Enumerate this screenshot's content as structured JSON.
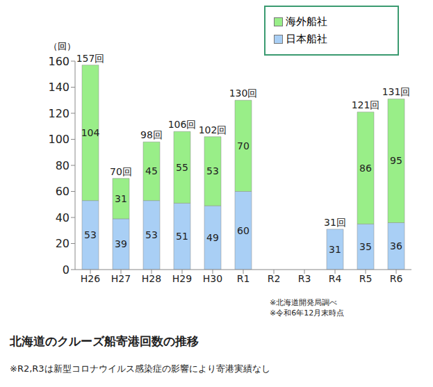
{
  "chart_data": {
    "type": "bar",
    "stacked": true,
    "data_labels": true,
    "grid": false,
    "legend": "top-right",
    "title": "北海道のクルーズ船寄港回数の推移",
    "y_label": "（回）",
    "categories": [
      "H26",
      "H27",
      "H28",
      "H29",
      "H30",
      "R1",
      "R2",
      "R3",
      "R4",
      "R5",
      "R6"
    ],
    "series": [
      {
        "name": "日本船社",
        "color": "#a9cff5",
        "values": [
          53,
          39,
          53,
          51,
          49,
          60,
          null,
          null,
          31,
          35,
          36
        ]
      },
      {
        "name": "海外船社",
        "color": "#99ee88",
        "values": [
          104,
          31,
          45,
          55,
          53,
          70,
          null,
          null,
          null,
          86,
          95
        ]
      }
    ],
    "totals": [
      157,
      70,
      98,
      106,
      102,
      130,
      null,
      null,
      31,
      121,
      131
    ],
    "total_labels": [
      "157回",
      "70回",
      "98回",
      "106回",
      "102回",
      "130回",
      null,
      null,
      "31回",
      "121回",
      "131回"
    ],
    "ylim": [
      0,
      160
    ],
    "yticks": [
      0,
      20,
      40,
      60,
      80,
      100,
      120,
      140,
      160
    ],
    "notes": [
      "※北海道開発局調べ",
      "※令和6年12月末時点"
    ],
    "footnote": "※R2,R3は新型コロナウイルス感染症の影響により寄港実績なし"
  }
}
